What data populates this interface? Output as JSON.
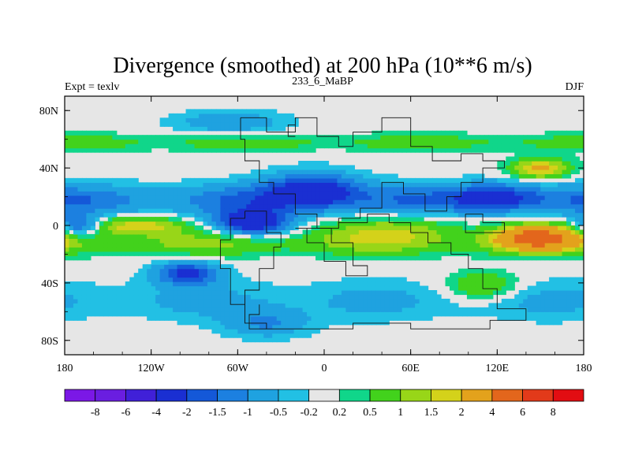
{
  "chart_data": {
    "type": "heatmap",
    "title": "Divergence (smoothed) at 200 hPa (10**6 m/s)",
    "subtitle_left": "Expt = texlv",
    "subtitle_center": "233_6_MaBP",
    "subtitle_right": "DJF",
    "xlabel": "",
    "ylabel": "",
    "xlim": [
      -180,
      180
    ],
    "ylim": [
      -90,
      90
    ],
    "x_ticks": [
      {
        "value": -180,
        "label": "180"
      },
      {
        "value": -120,
        "label": "120W"
      },
      {
        "value": -60,
        "label": "60W"
      },
      {
        "value": 0,
        "label": "0"
      },
      {
        "value": 60,
        "label": "60E"
      },
      {
        "value": 120,
        "label": "120E"
      },
      {
        "value": 180,
        "label": "180"
      }
    ],
    "y_ticks": [
      {
        "value": 80,
        "label": "80N"
      },
      {
        "value": 40,
        "label": "40N"
      },
      {
        "value": 0,
        "label": "0"
      },
      {
        "value": -40,
        "label": "40S"
      },
      {
        "value": -80,
        "label": "80S"
      }
    ],
    "colorbar": {
      "colors": [
        "#7b18e6",
        "#6a1ee0",
        "#4020d8",
        "#1a2fd2",
        "#1458d8",
        "#1c80e0",
        "#1fa2e0",
        "#22c0e4",
        "#e6e6e6",
        "#10d68a",
        "#42d21c",
        "#98d618",
        "#d4d21a",
        "#e3a21c",
        "#e3661c",
        "#e23a1a",
        "#e20d12"
      ],
      "labels": [
        "-8",
        "-6",
        "-4",
        "-2",
        "-1.5",
        "-1",
        "-0.5",
        "-0.2",
        "0.2",
        "0.5",
        "1",
        "1.5",
        "2",
        "4",
        "6",
        "8"
      ]
    },
    "features": [
      {
        "type": "band",
        "lat": 58,
        "half_width": 6,
        "value": 0.9
      },
      {
        "type": "band",
        "lat": 18,
        "half_width": 11,
        "value": -1.6
      },
      {
        "type": "band",
        "lat": -12,
        "half_width": 9,
        "value": 1.3
      },
      {
        "type": "band",
        "lat": -52,
        "half_width": 14,
        "value": -0.7
      },
      {
        "type": "blob",
        "lon": -8,
        "lat": 25,
        "r_lon": 32,
        "r_lat": 12,
        "value": -2.4
      },
      {
        "type": "blob",
        "lon": -50,
        "lat": 2,
        "r_lon": 26,
        "r_lat": 9,
        "value": -2.8
      },
      {
        "type": "blob",
        "lon": -95,
        "lat": -33,
        "r_lon": 22,
        "r_lat": 8,
        "value": -2.2
      },
      {
        "type": "blob",
        "lon": -170,
        "lat": 0,
        "r_lon": 15,
        "r_lat": 7,
        "value": -2.0
      },
      {
        "type": "blob",
        "lon": 118,
        "lat": 20,
        "r_lon": 28,
        "r_lat": 9,
        "value": -1.9
      },
      {
        "type": "blob",
        "lon": 45,
        "lat": -2,
        "r_lon": 45,
        "r_lat": 9,
        "value": 1.2
      },
      {
        "type": "blob",
        "lon": 148,
        "lat": -8,
        "r_lon": 26,
        "r_lat": 8,
        "value": 4.6
      },
      {
        "type": "blob",
        "lon": 150,
        "lat": 40,
        "r_lon": 20,
        "r_lat": 7,
        "value": 2.2
      },
      {
        "type": "blob",
        "lon": -130,
        "lat": 0,
        "r_lon": 35,
        "r_lat": 6,
        "value": 1.8
      },
      {
        "type": "blob",
        "lon": -65,
        "lat": 72,
        "r_lon": 40,
        "r_lat": 8,
        "value": -0.9
      },
      {
        "type": "blob",
        "lon": 110,
        "lat": -42,
        "r_lon": 25,
        "r_lat": 10,
        "value": 1.2
      },
      {
        "type": "blob",
        "lon": -40,
        "lat": -68,
        "r_lon": 30,
        "r_lat": 10,
        "value": -1.0
      }
    ],
    "map_outlines": [
      [
        [
          -58,
          75
        ],
        [
          -40,
          75
        ],
        [
          -40,
          65
        ],
        [
          -20,
          65
        ],
        [
          -20,
          75
        ],
        [
          -5,
          75
        ],
        [
          -5,
          62
        ],
        [
          10,
          62
        ],
        [
          10,
          55
        ],
        [
          20,
          55
        ],
        [
          20,
          65
        ],
        [
          40,
          65
        ],
        [
          40,
          75
        ],
        [
          60,
          75
        ],
        [
          60,
          55
        ],
        [
          75,
          55
        ],
        [
          75,
          45
        ],
        [
          95,
          45
        ],
        [
          95,
          50
        ],
        [
          110,
          50
        ],
        [
          110,
          45
        ],
        [
          125,
          45
        ],
        [
          125,
          40
        ],
        [
          110,
          40
        ],
        [
          110,
          30
        ],
        [
          95,
          30
        ],
        [
          95,
          20
        ],
        [
          85,
          20
        ],
        [
          85,
          10
        ],
        [
          70,
          10
        ],
        [
          70,
          22
        ],
        [
          55,
          22
        ],
        [
          55,
          30
        ],
        [
          40,
          30
        ],
        [
          40,
          12
        ],
        [
          25,
          12
        ],
        [
          25,
          5
        ],
        [
          10,
          5
        ],
        [
          10,
          -2
        ],
        [
          -5,
          -2
        ],
        [
          -5,
          8
        ],
        [
          -20,
          8
        ],
        [
          -20,
          22
        ],
        [
          -35,
          22
        ],
        [
          -35,
          30
        ],
        [
          -45,
          30
        ],
        [
          -45,
          45
        ],
        [
          -55,
          45
        ],
        [
          -55,
          60
        ],
        [
          -58,
          60
        ],
        [
          -58,
          75
        ]
      ],
      [
        [
          -55,
          10
        ],
        [
          -40,
          10
        ],
        [
          -40,
          -5
        ],
        [
          -30,
          -5
        ],
        [
          -30,
          -15
        ],
        [
          -35,
          -15
        ],
        [
          -35,
          -30
        ],
        [
          -45,
          -30
        ],
        [
          -45,
          -45
        ],
        [
          -55,
          -45
        ],
        [
          -55,
          -55
        ],
        [
          -65,
          -55
        ],
        [
          -65,
          -30
        ],
        [
          -72,
          -30
        ],
        [
          -72,
          -10
        ],
        [
          -65,
          -10
        ],
        [
          -65,
          5
        ],
        [
          -55,
          5
        ],
        [
          -55,
          10
        ]
      ],
      [
        [
          -20,
          -2
        ],
        [
          5,
          -2
        ],
        [
          5,
          -12
        ],
        [
          20,
          -12
        ],
        [
          20,
          -28
        ],
        [
          30,
          -28
        ],
        [
          30,
          -35
        ],
        [
          15,
          -35
        ],
        [
          15,
          -25
        ],
        [
          0,
          -25
        ],
        [
          0,
          -12
        ],
        [
          -12,
          -12
        ],
        [
          -12,
          -2
        ],
        [
          -20,
          -2
        ]
      ],
      [
        [
          -55,
          -55
        ],
        [
          -55,
          -68
        ],
        [
          -40,
          -68
        ],
        [
          -40,
          -72
        ],
        [
          20,
          -72
        ],
        [
          20,
          -68
        ],
        [
          60,
          -68
        ],
        [
          60,
          -72
        ],
        [
          115,
          -72
        ],
        [
          115,
          -66
        ],
        [
          140,
          -66
        ],
        [
          140,
          -58
        ],
        [
          120,
          -58
        ],
        [
          120,
          -44
        ],
        [
          110,
          -44
        ],
        [
          110,
          -30
        ],
        [
          100,
          -30
        ],
        [
          100,
          -20
        ],
        [
          88,
          -20
        ],
        [
          88,
          -12
        ],
        [
          72,
          -12
        ],
        [
          72,
          -5
        ],
        [
          60,
          -5
        ],
        [
          60,
          2
        ],
        [
          45,
          2
        ],
        [
          45,
          8
        ],
        [
          30,
          8
        ],
        [
          30,
          2
        ],
        [
          10,
          2
        ]
      ],
      [
        [
          -40,
          -72
        ],
        [
          -52,
          -72
        ],
        [
          -52,
          -62
        ],
        [
          -45,
          -62
        ],
        [
          -45,
          -55
        ]
      ],
      [
        [
          -20,
          62
        ],
        [
          -25,
          62
        ],
        [
          -25,
          70
        ],
        [
          -20,
          70
        ]
      ],
      [
        [
          98,
          8
        ],
        [
          110,
          8
        ],
        [
          110,
          2
        ],
        [
          125,
          2
        ],
        [
          125,
          -5
        ],
        [
          110,
          -5
        ],
        [
          98,
          -5
        ],
        [
          98,
          8
        ]
      ]
    ]
  }
}
